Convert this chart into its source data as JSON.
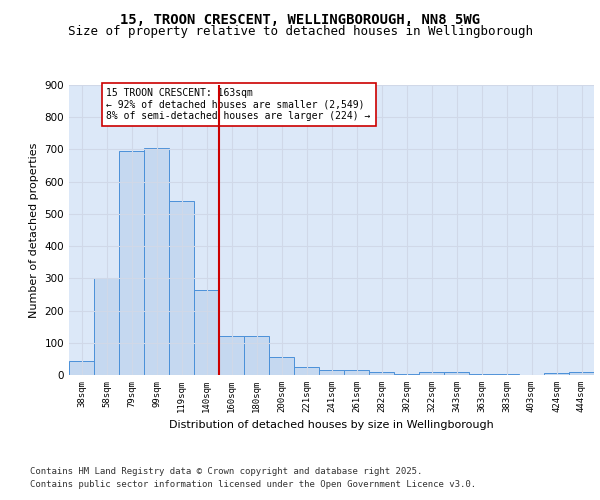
{
  "title_line1": "15, TROON CRESCENT, WELLINGBOROUGH, NN8 5WG",
  "title_line2": "Size of property relative to detached houses in Wellingborough",
  "xlabel": "Distribution of detached houses by size in Wellingborough",
  "ylabel": "Number of detached properties",
  "bar_color": "#c5d8f0",
  "bar_edge_color": "#4a90d9",
  "vline_color": "#cc0000",
  "vline_x": 6.0,
  "annotation_text": "15 TROON CRESCENT: 163sqm\n← 92% of detached houses are smaller (2,549)\n8% of semi-detached houses are larger (224) →",
  "annotation_box_color": "#cc0000",
  "annotation_bg": "#ffffff",
  "categories": [
    "38sqm",
    "58sqm",
    "79sqm",
    "99sqm",
    "119sqm",
    "140sqm",
    "160sqm",
    "180sqm",
    "200sqm",
    "221sqm",
    "241sqm",
    "261sqm",
    "282sqm",
    "302sqm",
    "322sqm",
    "343sqm",
    "363sqm",
    "383sqm",
    "403sqm",
    "424sqm",
    "444sqm"
  ],
  "values": [
    45,
    300,
    695,
    705,
    540,
    265,
    120,
    120,
    57,
    25,
    15,
    17,
    8,
    3,
    10,
    10,
    3,
    2,
    0,
    5,
    8
  ],
  "ylim": [
    0,
    900
  ],
  "yticks": [
    0,
    100,
    200,
    300,
    400,
    500,
    600,
    700,
    800,
    900
  ],
  "grid_color": "#d0d8e8",
  "bg_color": "#dce8f8",
  "footer_line1": "Contains HM Land Registry data © Crown copyright and database right 2025.",
  "footer_line2": "Contains public sector information licensed under the Open Government Licence v3.0.",
  "title_fontsize": 10,
  "subtitle_fontsize": 9,
  "footer_fontsize": 6.5
}
